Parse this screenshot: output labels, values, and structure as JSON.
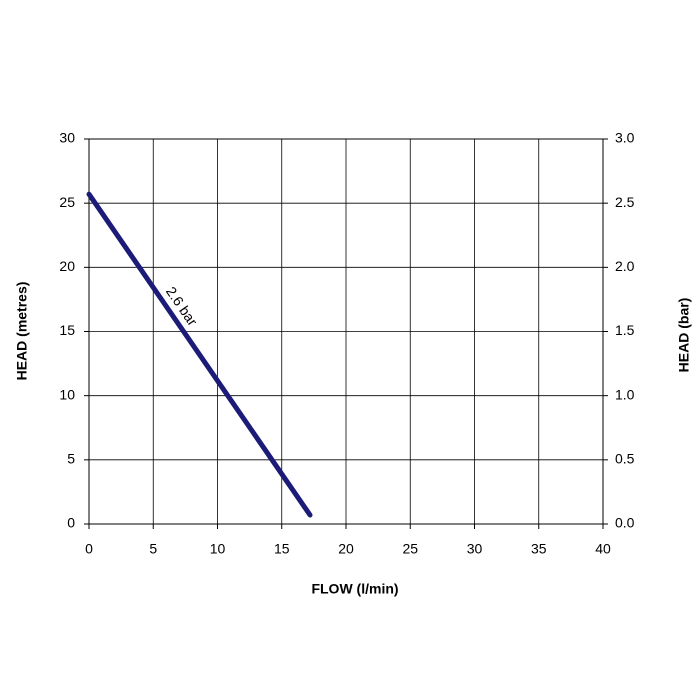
{
  "chart_data": {
    "type": "line",
    "x_label": "FLOW (l/min)",
    "y_label": "HEAD (metres)",
    "y2_label": "HEAD (bar)",
    "x": [
      0,
      17.2
    ],
    "series": [
      {
        "name": "2.6 bar",
        "color": "#1c1c78",
        "values": [
          25.7,
          0.7
        ]
      }
    ],
    "xlim": [
      0,
      40
    ],
    "xticks": [
      0,
      5,
      10,
      15,
      20,
      25,
      30,
      35,
      40
    ],
    "ylim": [
      0,
      30
    ],
    "yticks": [
      0,
      5,
      10,
      15,
      20,
      25,
      30
    ],
    "y2lim": [
      0,
      3
    ],
    "y2ticks": [
      {
        "value": 0,
        "label": "0.0"
      },
      0.5,
      {
        "value": 1,
        "label": "1.0"
      },
      1.5,
      {
        "value": 2,
        "label": "2.0"
      },
      2.5,
      {
        "value": 3,
        "label": "3.0"
      }
    ],
    "grid": true
  }
}
